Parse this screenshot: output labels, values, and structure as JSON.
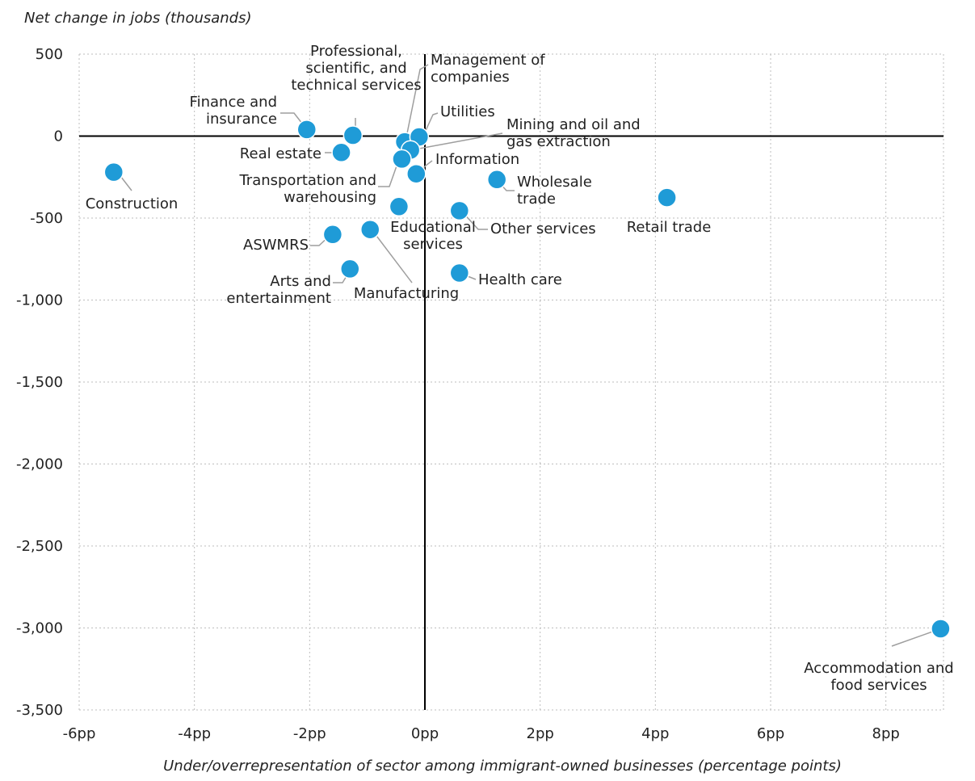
{
  "chart_data": {
    "type": "scatter",
    "title": "",
    "ylabel": "Net change in jobs (thousands)",
    "xlabel": "Under/overrepresentation of sector among immigrant-owned businesses (percentage points)",
    "xlim": [
      -6,
      9
    ],
    "ylim": [
      -3500,
      500
    ],
    "x_ticks": [
      -6,
      -4,
      -2,
      0,
      2,
      4,
      6,
      8
    ],
    "x_tick_labels": [
      "-6pp",
      "-4pp",
      "-2pp",
      "0pp",
      "2pp",
      "4pp",
      "6pp",
      "8pp"
    ],
    "y_ticks": [
      500,
      0,
      -500,
      -1000,
      -1500,
      -2000,
      -2500,
      -3000,
      -3500
    ],
    "y_tick_labels": [
      "500",
      "0",
      "-500",
      "-1,000",
      "-1,500",
      "-2,000",
      "-2,500",
      "-3,000",
      "-3,500"
    ],
    "grid": true,
    "point_color": "#1f9bd7",
    "points": [
      {
        "label": [
          "Construction"
        ],
        "x": -5.4,
        "y": -220
      },
      {
        "label": [
          "Finance and",
          "insurance"
        ],
        "x": -2.05,
        "y": 40
      },
      {
        "label": [
          "Professional,",
          "scientific, and",
          "technical services"
        ],
        "x": -1.25,
        "y": 5
      },
      {
        "label": [
          "Real estate"
        ],
        "x": -1.45,
        "y": -100
      },
      {
        "label": [
          "Management of",
          "companies"
        ],
        "x": -0.35,
        "y": -35
      },
      {
        "label": [
          "Utilities"
        ],
        "x": -0.1,
        "y": -5
      },
      {
        "label": [
          "Mining and oil and",
          "gas extraction"
        ],
        "x": -0.25,
        "y": -85
      },
      {
        "label": [
          "Transportation and",
          "warehousing"
        ],
        "x": -0.4,
        "y": -140
      },
      {
        "label": [
          "Information"
        ],
        "x": -0.15,
        "y": -230
      },
      {
        "label": [
          "Wholesale",
          "trade"
        ],
        "x": 1.25,
        "y": -265
      },
      {
        "label": [
          "Retail trade"
        ],
        "x": 4.2,
        "y": -375
      },
      {
        "label": [
          "Educational",
          "services"
        ],
        "x": -0.45,
        "y": -430
      },
      {
        "label": [
          "Other services"
        ],
        "x": 0.6,
        "y": -455
      },
      {
        "label": [
          "ASWMRS"
        ],
        "x": -1.6,
        "y": -600
      },
      {
        "label": [
          "Manufacturing"
        ],
        "x": -0.95,
        "y": -570
      },
      {
        "label": [
          "Arts and",
          "entertainment"
        ],
        "x": -1.3,
        "y": -810
      },
      {
        "label": [
          "Health care"
        ],
        "x": 0.6,
        "y": -835
      },
      {
        "label": [
          "Accommodation and",
          "food services"
        ],
        "x": 8.95,
        "y": -3005
      }
    ]
  }
}
